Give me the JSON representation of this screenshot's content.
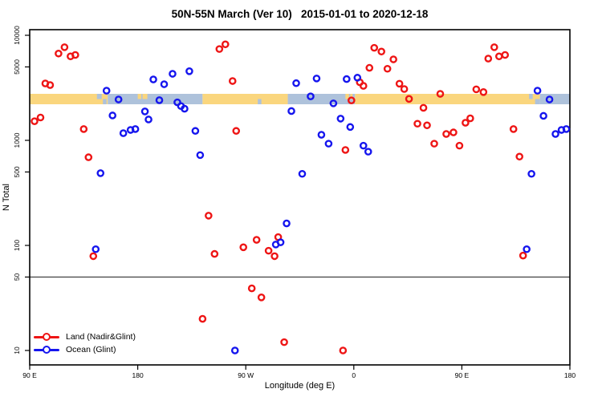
{
  "title": "50N-55N March (Ver 10)   2015-01-01 to 2020-12-18",
  "axes": {
    "x": {
      "label": "Longitude (deg E)",
      "ticks": [
        {
          "deg": 90,
          "label": "90 E"
        },
        {
          "deg": 180,
          "label": "180"
        },
        {
          "deg": 270,
          "label": "90 W"
        },
        {
          "deg": 360,
          "label": "0"
        },
        {
          "deg": 450,
          "label": "90 E"
        },
        {
          "deg": 540,
          "label": "180"
        }
      ]
    },
    "y": {
      "label": "N Total",
      "scale": "log",
      "ticks": [
        {
          "v": 10,
          "label": "10"
        },
        {
          "v": 50,
          "label": "50"
        },
        {
          "v": 100,
          "label": "100"
        },
        {
          "v": 500,
          "label": "500"
        },
        {
          "v": 1000,
          "label": "1000"
        },
        {
          "v": 5000,
          "label": "5000"
        },
        {
          "v": 10000,
          "label": "10000"
        }
      ]
    }
  },
  "colors": {
    "land_series": "#ee1515",
    "ocean_series": "#1515ee",
    "band_land": "#fad67e",
    "band_ocean": "#aec2db",
    "axis": "#000000",
    "reference_line": "#333333"
  },
  "reference_line": {
    "value": 50
  },
  "land_ocean_band": {
    "description": "land/ocean map strip along 50N-55N",
    "segments": [
      {
        "from": 90,
        "to": 155,
        "type": "land"
      },
      {
        "from": 155,
        "to": 234,
        "type": "ocean"
      },
      {
        "from": 234,
        "to": 305,
        "type": "land"
      },
      {
        "from": 305,
        "to": 361,
        "type": "ocean"
      },
      {
        "from": 361,
        "to": 515,
        "type": "land"
      },
      {
        "from": 515,
        "to": 540,
        "type": "ocean"
      }
    ],
    "flecks": [
      {
        "deg": 146,
        "w": 4,
        "type": "ocean",
        "half": "top"
      },
      {
        "deg": 151,
        "w": 3,
        "type": "ocean",
        "half": "bottom"
      },
      {
        "deg": 180,
        "w": 3,
        "type": "land",
        "half": "top"
      },
      {
        "deg": 184,
        "w": 4,
        "type": "land",
        "half": "top"
      },
      {
        "deg": 280,
        "w": 3,
        "type": "ocean",
        "half": "bottom"
      },
      {
        "deg": 353,
        "w": 3,
        "type": "land",
        "half": "top"
      },
      {
        "deg": 357,
        "w": 2,
        "type": "land",
        "half": "top"
      },
      {
        "deg": 363,
        "w": 3,
        "type": "land",
        "half": "top"
      },
      {
        "deg": 506,
        "w": 3,
        "type": "ocean",
        "half": "top"
      },
      {
        "deg": 511,
        "w": 4,
        "type": "ocean",
        "half": "bottom"
      }
    ]
  },
  "legend": {
    "items": [
      {
        "label": "Land (Nadir&Glint)",
        "series": "land"
      },
      {
        "label": "Ocean (Glint)",
        "series": "ocean"
      }
    ]
  },
  "chart_data": {
    "type": "scatter",
    "title": "50N-55N March (Ver 10)   2015-01-01 to 2020-12-18",
    "xlabel": "Longitude (deg E)",
    "ylabel": "N Total",
    "y_scale": "log",
    "ylim": [
      7.3,
      11300
    ],
    "x_axis_note": "x is longitude in deg E increasing eastward from 90E; axis spans 450 deg (90E..180..90W..0..90E..180), so data in 90E-180 appears twice",
    "xlim_deg": [
      90,
      540
    ],
    "series": [
      {
        "name": "Land (Nadir&Glint)",
        "key": "land",
        "color": "#ee1515",
        "points": [
          [
            119,
            7700
          ],
          [
            114,
            6700
          ],
          [
            124,
            6300
          ],
          [
            128,
            6500
          ],
          [
            103,
            3480
          ],
          [
            107,
            3360
          ],
          [
            99,
            1650
          ],
          [
            94,
            1520
          ],
          [
            135,
            1280
          ],
          [
            139,
            690
          ],
          [
            143,
            79
          ],
          [
            248,
            7400
          ],
          [
            253,
            8200
          ],
          [
            259,
            3670
          ],
          [
            262,
            1230
          ],
          [
            239,
            192
          ],
          [
            234,
            20
          ],
          [
            244,
            83
          ],
          [
            268,
            96
          ],
          [
            279,
            113
          ],
          [
            289,
            89
          ],
          [
            294,
            79
          ],
          [
            297,
            120
          ],
          [
            275,
            39
          ],
          [
            283,
            32
          ],
          [
            302,
            12
          ],
          [
            351,
            10
          ],
          [
            358,
            2400
          ],
          [
            353,
            810
          ],
          [
            377,
            7600
          ],
          [
            383,
            7000
          ],
          [
            393,
            5900
          ],
          [
            388,
            4800
          ],
          [
            373,
            4900
          ],
          [
            365,
            3570
          ],
          [
            368,
            3300
          ],
          [
            398,
            3460
          ],
          [
            402,
            3080
          ],
          [
            406,
            2480
          ],
          [
            418,
            2040
          ],
          [
            413,
            1440
          ],
          [
            421,
            1390
          ],
          [
            427,
            930
          ],
          [
            432,
            2770
          ],
          [
            437,
            1150
          ],
          [
            443,
            1190
          ],
          [
            448,
            890
          ],
          [
            453,
            1470
          ],
          [
            457,
            1620
          ],
          [
            462,
            3060
          ],
          [
            468,
            2880
          ],
          [
            477,
            7700
          ],
          [
            472,
            6000
          ],
          [
            481,
            6300
          ],
          [
            486,
            6500
          ],
          [
            493,
            1280
          ],
          [
            498,
            700
          ],
          [
            501,
            80
          ]
        ]
      },
      {
        "name": "Ocean (Glint)",
        "key": "ocean",
        "color": "#1515ee",
        "points": [
          [
            154,
            2970
          ],
          [
            164,
            2450
          ],
          [
            159,
            1725
          ],
          [
            149,
            487
          ],
          [
            145,
            92
          ],
          [
            193,
            3800
          ],
          [
            202,
            3420
          ],
          [
            198,
            2410
          ],
          [
            186,
            1885
          ],
          [
            189,
            1580
          ],
          [
            168,
            1170
          ],
          [
            174,
            1256
          ],
          [
            178,
            1280
          ],
          [
            209,
            4300
          ],
          [
            223,
            4550
          ],
          [
            213,
            2300
          ],
          [
            216,
            2120
          ],
          [
            219,
            2000
          ],
          [
            228,
            1230
          ],
          [
            232,
            724
          ],
          [
            261,
            10
          ],
          [
            295,
            102
          ],
          [
            299,
            107
          ],
          [
            304,
            162
          ],
          [
            312,
            3500
          ],
          [
            308,
            1900
          ],
          [
            317,
            480
          ],
          [
            329,
            3880
          ],
          [
            354,
            3830
          ],
          [
            363,
            3950
          ],
          [
            324,
            2620
          ],
          [
            343,
            2250
          ],
          [
            349,
            1610
          ],
          [
            357,
            1340
          ],
          [
            333,
            1130
          ],
          [
            339,
            930
          ],
          [
            368,
            890
          ],
          [
            372,
            780
          ],
          [
            513,
            2970
          ],
          [
            523,
            2450
          ],
          [
            518,
            1710
          ],
          [
            528,
            1150
          ],
          [
            533,
            1256
          ],
          [
            537,
            1280
          ],
          [
            508,
            480
          ],
          [
            504,
            92
          ]
        ]
      }
    ]
  }
}
